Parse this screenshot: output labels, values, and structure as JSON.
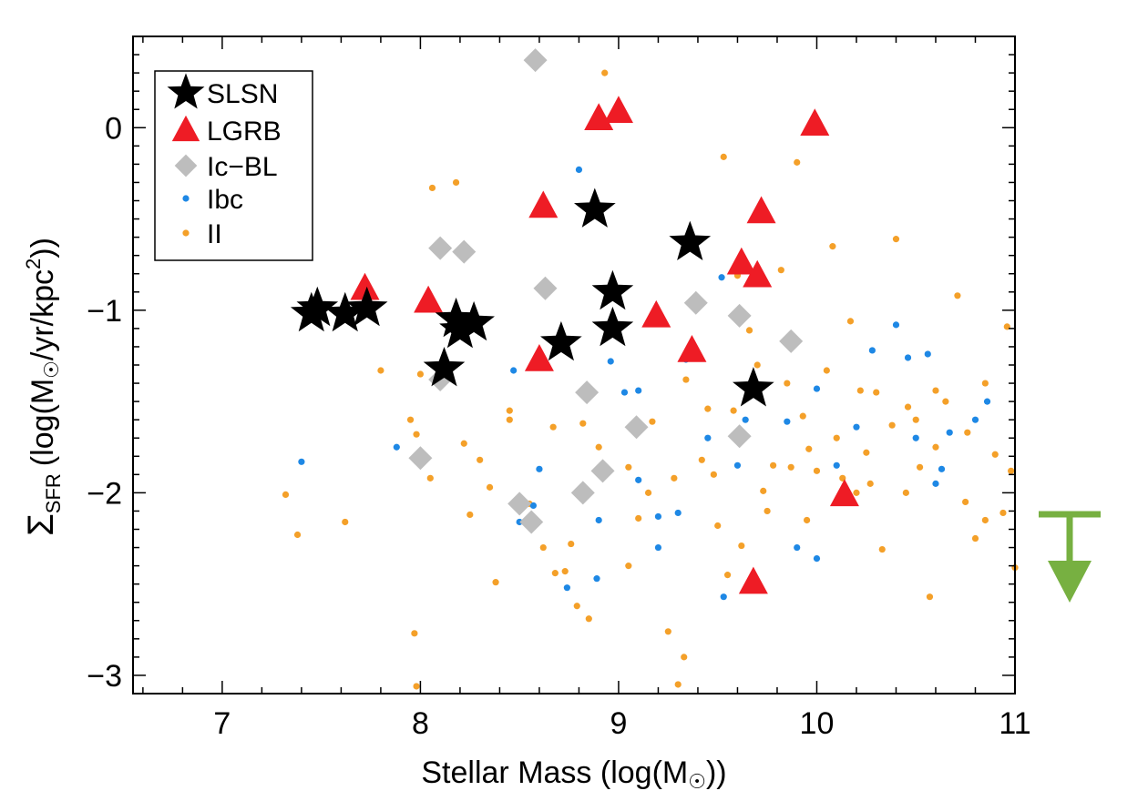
{
  "chart_data": {
    "type": "scatter",
    "xlabel": "Stellar Mass (log(M",
    "xlabel_suffix": "))",
    "ylabel_symbol": "Σ",
    "ylabel_subscript": "SFR",
    "ylabel_part1": "(log(M",
    "ylabel_part2": "/yr/kpc",
    "ylabel_sup": "2",
    "ylabel_part3": "))",
    "xlim": [
      6.55,
      11.0
    ],
    "ylim": [
      -3.1,
      0.5
    ],
    "xticks": [
      7,
      8,
      9,
      10,
      11
    ],
    "xtick_labels": [
      "7",
      "8",
      "9",
      "10",
      "11"
    ],
    "yticks": [
      0,
      -1,
      -2,
      -3
    ],
    "ytick_labels": [
      "0",
      "−1",
      "−2",
      "−3"
    ],
    "grid": false,
    "legend_position": "top-left",
    "colors": {
      "SLSN": "#000000",
      "LGRB": "#ee1c25",
      "Ic-BL": "#bdbdbd",
      "Ibc": "#1e88e5",
      "II": "#f4a029",
      "upper_limit_arrow": "#77b041"
    },
    "series": [
      {
        "name": "SLSN",
        "marker": "star",
        "points": [
          [
            7.45,
            -1.02
          ],
          [
            7.48,
            -0.99
          ],
          [
            7.62,
            -1.02
          ],
          [
            7.73,
            -0.99
          ],
          [
            8.12,
            -1.32
          ],
          [
            8.18,
            -1.05
          ],
          [
            8.2,
            -1.11
          ],
          [
            8.27,
            -1.07
          ],
          [
            8.71,
            -1.18
          ],
          [
            8.88,
            -0.45
          ],
          [
            8.97,
            -0.9
          ],
          [
            8.97,
            -1.1
          ],
          [
            9.36,
            -0.63
          ],
          [
            9.68,
            -1.43
          ]
        ]
      },
      {
        "name": "LGRB",
        "marker": "triangle",
        "points": [
          [
            7.72,
            -0.88
          ],
          [
            8.04,
            -0.95
          ],
          [
            8.6,
            -1.27
          ],
          [
            8.62,
            -0.43
          ],
          [
            8.9,
            0.05
          ],
          [
            9.0,
            0.09
          ],
          [
            9.19,
            -1.03
          ],
          [
            9.37,
            -1.22
          ],
          [
            9.62,
            -0.74
          ],
          [
            9.68,
            -2.49
          ],
          [
            9.7,
            -0.81
          ],
          [
            9.72,
            -0.46
          ],
          [
            9.99,
            0.02
          ],
          [
            10.14,
            -2.01
          ]
        ]
      },
      {
        "name": "Ic−BL",
        "marker": "diamond",
        "points": [
          [
            8.58,
            0.37
          ],
          [
            8.1,
            -0.66
          ],
          [
            8.22,
            -0.68
          ],
          [
            8.63,
            -0.88
          ],
          [
            9.39,
            -0.96
          ],
          [
            9.61,
            -1.03
          ],
          [
            9.87,
            -1.17
          ],
          [
            8.84,
            -1.45
          ],
          [
            8.1,
            -1.38
          ],
          [
            9.09,
            -1.64
          ],
          [
            9.61,
            -1.69
          ],
          [
            8.0,
            -1.81
          ],
          [
            8.92,
            -1.88
          ],
          [
            8.82,
            -2.0
          ],
          [
            8.5,
            -2.06
          ],
          [
            8.56,
            -2.16
          ]
        ]
      },
      {
        "name": "Ibc",
        "marker": "dot",
        "points": [
          [
            8.8,
            -0.23
          ],
          [
            7.4,
            -1.83
          ],
          [
            7.88,
            -1.75
          ],
          [
            8.47,
            -1.33
          ],
          [
            8.6,
            -1.87
          ],
          [
            8.5,
            -2.16
          ],
          [
            8.57,
            -2.07
          ],
          [
            8.74,
            -2.52
          ],
          [
            8.89,
            -2.47
          ],
          [
            8.9,
            -2.15
          ],
          [
            8.96,
            -1.28
          ],
          [
            9.03,
            -1.45
          ],
          [
            9.1,
            -1.44
          ],
          [
            9.1,
            -1.93
          ],
          [
            9.2,
            -2.3
          ],
          [
            9.3,
            -2.11
          ],
          [
            9.34,
            -1.27
          ],
          [
            9.45,
            -1.7
          ],
          [
            9.52,
            -0.82
          ],
          [
            9.6,
            -1.85
          ],
          [
            9.64,
            -1.6
          ],
          [
            9.7,
            -2.5
          ],
          [
            9.9,
            -2.3
          ],
          [
            10.0,
            -2.36
          ],
          [
            10.1,
            -1.85
          ],
          [
            10.2,
            -1.64
          ],
          [
            10.28,
            -1.22
          ],
          [
            10.4,
            -1.08
          ],
          [
            10.46,
            -1.26
          ],
          [
            10.5,
            -1.7
          ],
          [
            10.56,
            -1.24
          ],
          [
            10.6,
            -1.95
          ],
          [
            10.63,
            -1.87
          ],
          [
            10.67,
            -1.67
          ],
          [
            10.8,
            -1.6
          ],
          [
            10.86,
            -1.5
          ],
          [
            9.53,
            -2.57
          ],
          [
            9.2,
            -2.13
          ],
          [
            9.85,
            -1.61
          ],
          [
            10.0,
            -1.43
          ]
        ]
      },
      {
        "name": "II",
        "marker": "dot",
        "points": [
          [
            7.32,
            -2.01
          ],
          [
            7.38,
            -2.23
          ],
          [
            7.62,
            -2.16
          ],
          [
            7.8,
            -1.33
          ],
          [
            7.95,
            -1.6
          ],
          [
            8.0,
            -1.35
          ],
          [
            7.98,
            -1.68
          ],
          [
            8.05,
            -1.92
          ],
          [
            7.97,
            -2.77
          ],
          [
            8.06,
            -0.33
          ],
          [
            8.18,
            -0.3
          ],
          [
            8.09,
            -1.4
          ],
          [
            8.22,
            -1.73
          ],
          [
            8.25,
            -2.12
          ],
          [
            8.3,
            -1.82
          ],
          [
            8.35,
            -1.97
          ],
          [
            8.38,
            -2.49
          ],
          [
            8.45,
            -1.6
          ],
          [
            8.55,
            -2.06
          ],
          [
            8.62,
            -2.3
          ],
          [
            8.67,
            -1.64
          ],
          [
            8.68,
            -2.44
          ],
          [
            8.73,
            -2.43
          ],
          [
            8.79,
            -2.62
          ],
          [
            8.85,
            -2.69
          ],
          [
            8.93,
            0.3
          ],
          [
            9.05,
            -1.86
          ],
          [
            9.1,
            -2.14
          ],
          [
            9.17,
            -1.61
          ],
          [
            9.25,
            -2.76
          ],
          [
            9.28,
            -1.92
          ],
          [
            9.33,
            -2.9
          ],
          [
            9.34,
            -1.38
          ],
          [
            9.42,
            -1.82
          ],
          [
            9.45,
            -1.54
          ],
          [
            9.5,
            -2.18
          ],
          [
            9.53,
            -0.16
          ],
          [
            9.6,
            -0.81
          ],
          [
            9.62,
            -2.29
          ],
          [
            9.66,
            -1.11
          ],
          [
            9.73,
            -1.99
          ],
          [
            9.78,
            -1.85
          ],
          [
            9.82,
            -0.78
          ],
          [
            9.85,
            -1.4
          ],
          [
            9.9,
            -0.19
          ],
          [
            9.93,
            -1.58
          ],
          [
            9.96,
            -1.76
          ],
          [
            10.0,
            -1.88
          ],
          [
            10.05,
            -1.33
          ],
          [
            10.08,
            -0.65
          ],
          [
            10.13,
            -1.92
          ],
          [
            10.17,
            -1.06
          ],
          [
            10.22,
            -1.44
          ],
          [
            10.27,
            -1.95
          ],
          [
            10.33,
            -2.31
          ],
          [
            10.38,
            -1.63
          ],
          [
            10.4,
            -0.61
          ],
          [
            10.46,
            -1.53
          ],
          [
            10.52,
            -1.86
          ],
          [
            10.57,
            -2.57
          ],
          [
            10.6,
            -1.44
          ],
          [
            10.65,
            -1.5
          ],
          [
            10.71,
            -0.92
          ],
          [
            10.76,
            -1.67
          ],
          [
            10.8,
            -2.25
          ],
          [
            10.85,
            -1.4
          ],
          [
            10.9,
            -1.79
          ],
          [
            10.94,
            -2.11
          ],
          [
            10.96,
            -1.09
          ],
          [
            11.0,
            -2.41
          ],
          [
            9.3,
            -3.05
          ],
          [
            7.98,
            -3.06
          ],
          [
            8.45,
            -1.55
          ],
          [
            8.9,
            -1.75
          ],
          [
            9.15,
            -2.0
          ],
          [
            9.55,
            -2.45
          ],
          [
            9.75,
            -2.1
          ],
          [
            10.2,
            -2.0
          ],
          [
            10.45,
            -2.0
          ],
          [
            10.75,
            -2.05
          ],
          [
            10.98,
            -1.88
          ],
          [
            9.05,
            -2.4
          ],
          [
            8.76,
            -2.28
          ],
          [
            9.4,
            -1.25
          ],
          [
            10.3,
            -1.45
          ],
          [
            10.5,
            -1.6
          ],
          [
            9.7,
            -1.3
          ],
          [
            9.95,
            -2.15
          ],
          [
            10.6,
            -1.75
          ],
          [
            8.82,
            -1.62
          ],
          [
            9.48,
            -1.9
          ],
          [
            10.1,
            -1.7
          ],
          [
            10.85,
            -2.15
          ],
          [
            9.58,
            -1.55
          ],
          [
            10.25,
            -1.78
          ],
          [
            9.87,
            -1.86
          ]
        ]
      }
    ],
    "upper_limit_marker": {
      "type": "arrow-down",
      "color": "#77b041"
    }
  }
}
